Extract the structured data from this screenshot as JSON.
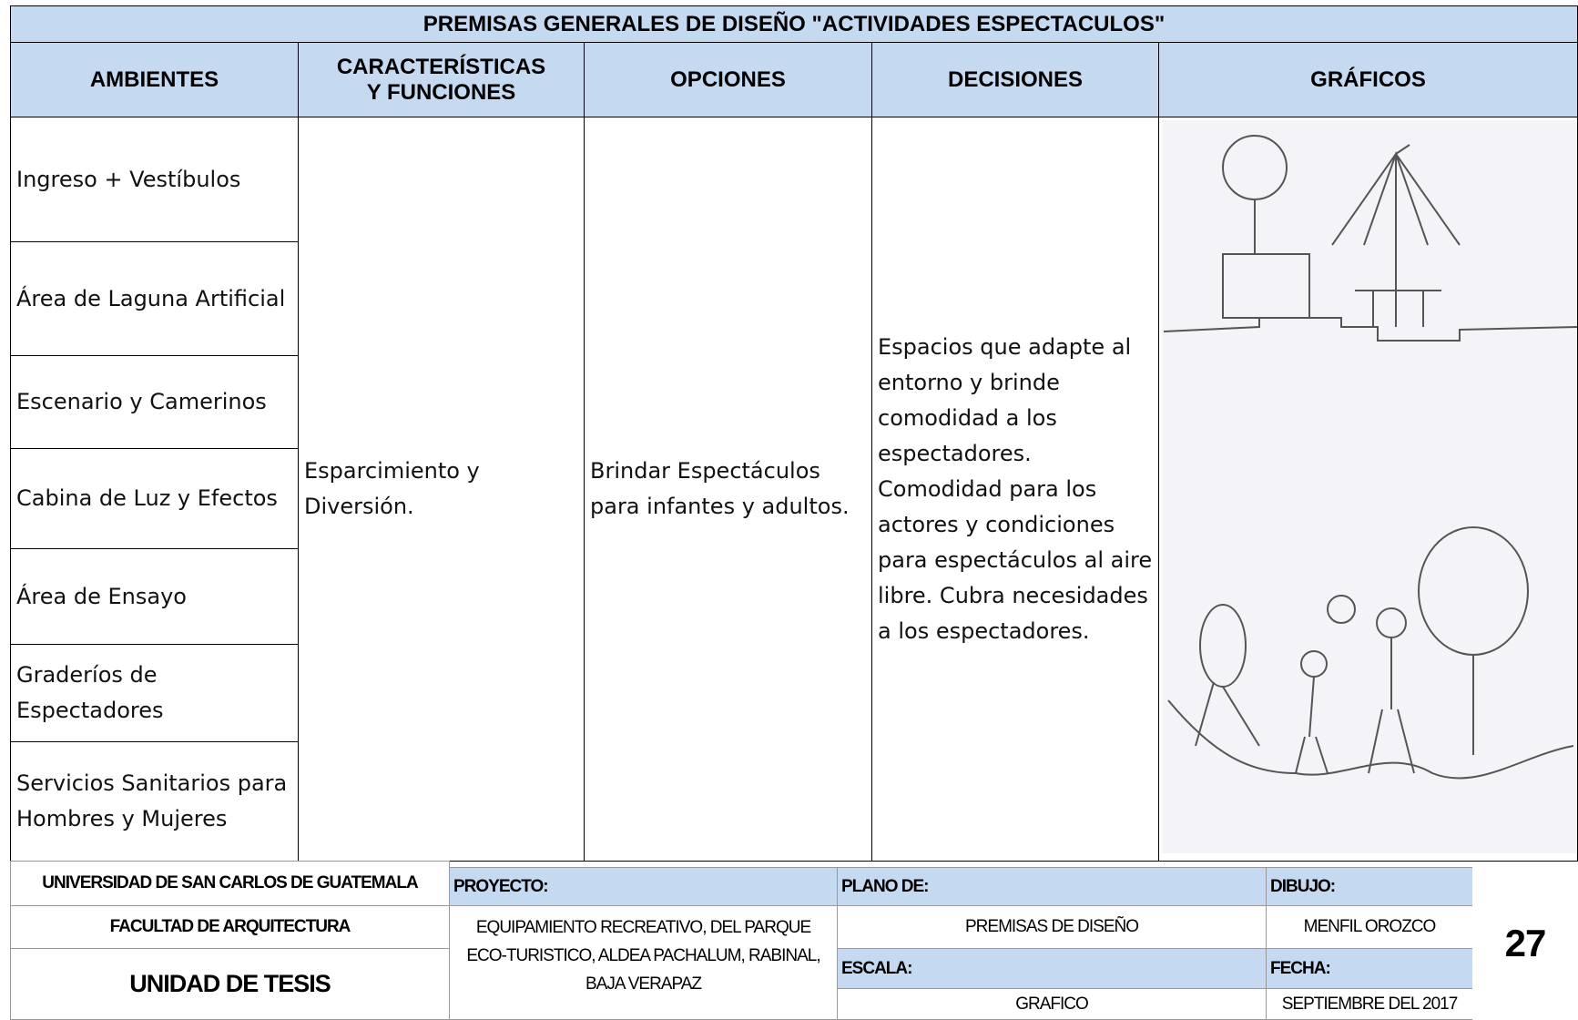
{
  "header": {
    "title": "PREMISAS GENERALES DE DISEÑO \"ACTIVIDADES ESPECTACULOS\"",
    "columns": [
      "AMBIENTES",
      "CARACTERÍSTICAS Y FUNCIONES",
      "OPCIONES",
      "DECISIONES",
      "GRÁFICOS"
    ]
  },
  "table": {
    "ambientes": [
      "Ingreso + Vestíbulos",
      "Área de Laguna Artificial",
      "Escenario y Camerinos",
      "Cabina de Luz y Efectos",
      "Área de Ensayo",
      "Graderíos de Espectadores",
      "Servicios Sanitarios para Hombres y Mujeres"
    ],
    "caracteristicas": "Esparcimiento y Diversión.",
    "opciones": "Brindar Espectáculos para infantes y adultos.",
    "decisiones": "Espacios que adapte al entorno y brinde comodidad a los espectadores. Comodidad para los actores y condiciones para espectáculos al aire libre. Cubra necesidades a los espectadores."
  },
  "footer": {
    "university": "UNIVERSIDAD DE SAN CARLOS DE GUATEMALA",
    "faculty": "FACULTAD DE ARQUITECTURA",
    "unit": "UNIDAD DE TESIS",
    "project_label": "PROYECTO:",
    "project": "EQUIPAMIENTO RECREATIVO, DEL PARQUE ECO-TURISTICO, ALDEA PACHALUM, RABINAL, BAJA VERAPAZ",
    "plan_label": "PLANO DE:",
    "plan": "PREMISAS DE DISEÑO",
    "scale_label": "ESCALA:",
    "scale": "GRAFICO",
    "drawing_label": "DIBUJO:",
    "drawing": "MENFIL OROZCO",
    "date_label": "FECHA:",
    "date": "SEPTIEMBRE DEL 2017",
    "page": "27"
  }
}
